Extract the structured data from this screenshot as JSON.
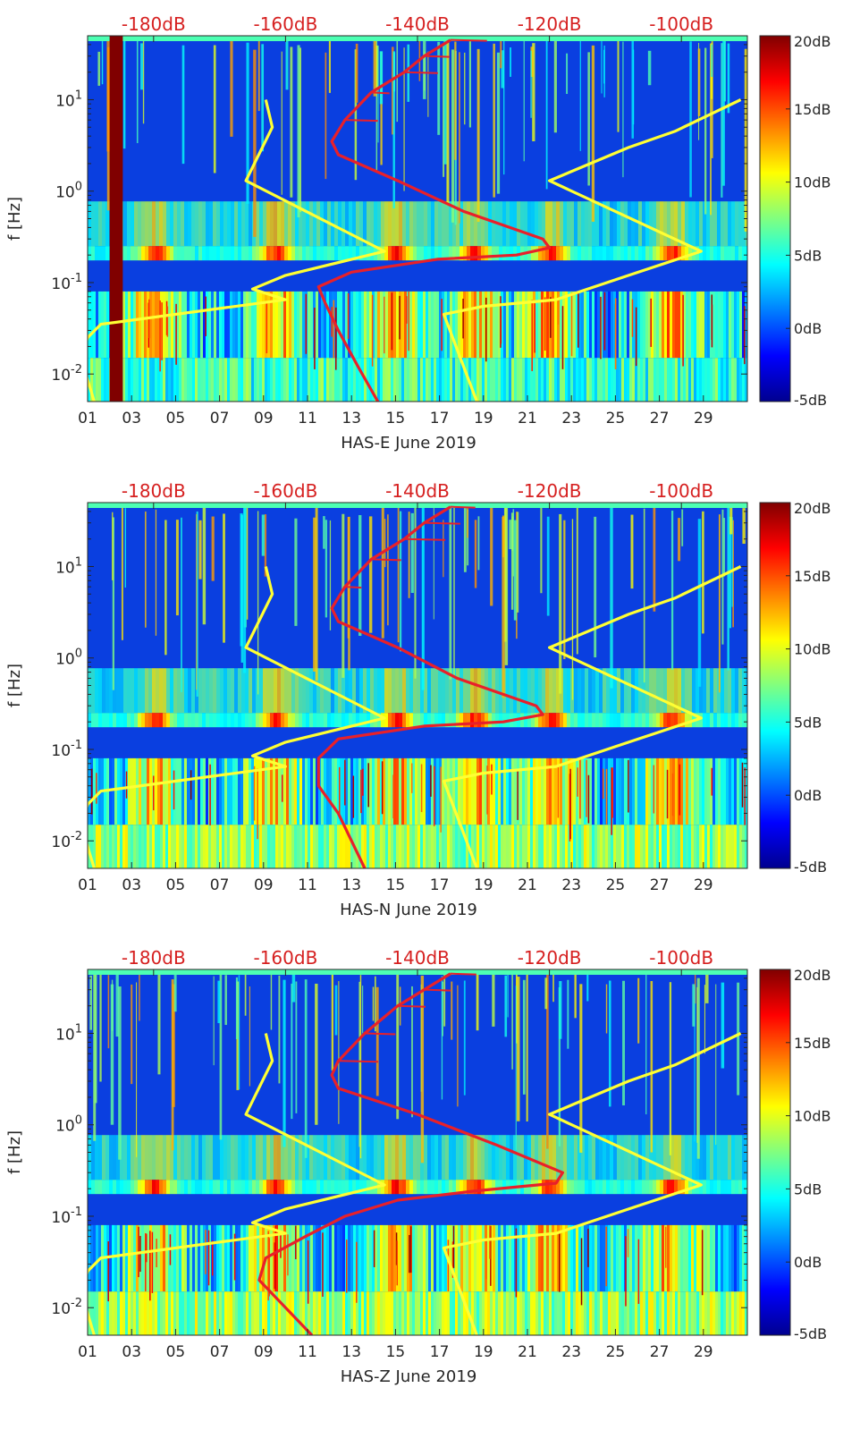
{
  "figure": {
    "colorbar_ticks": [
      "20dB",
      "15dB",
      "10dB",
      "5dB",
      "0dB",
      "-5dB"
    ],
    "colorbar_values": [
      20,
      15,
      10,
      5,
      0,
      -5
    ],
    "colormap": [
      "#00008f",
      "#0000ff",
      "#0080ff",
      "#00ffff",
      "#80ff80",
      "#ffff00",
      "#ff8000",
      "#ff0000",
      "#800000"
    ],
    "x_ticks": [
      "01",
      "03",
      "05",
      "07",
      "09",
      "11",
      "13",
      "15",
      "17",
      "19",
      "21",
      "23",
      "25",
      "27",
      "29"
    ],
    "top_ticks": [
      "-180dB",
      "-160dB",
      "-140dB",
      "-120dB",
      "-100dB"
    ],
    "colors": {
      "noise_model": "#ffff33",
      "psd": "#e8202a",
      "top_axis_text": "#d62020",
      "background": "#0a3fe0"
    }
  },
  "chart_data": [
    {
      "type": "heatmap",
      "xlabel": "HAS-E June 2019",
      "ylabel": "f [Hz]",
      "y_scale": "log",
      "ylim": [
        0.005,
        50
      ],
      "xlim": [
        1,
        31
      ],
      "y_ticks": [
        {
          "base": "10",
          "exp": "1"
        },
        {
          "base": "10",
          "exp": "0"
        },
        {
          "base": "10",
          "exp": "-1"
        },
        {
          "base": "10",
          "exp": "-2"
        }
      ],
      "top_axis_lim_dB": [
        -190,
        -90
      ],
      "colorbar_lim_dB": [
        -5,
        20
      ],
      "data_gap_days": [
        2.0,
        2.6
      ],
      "microseism_peak_hz": 0.2,
      "high_noise_days": [
        4,
        9.5,
        15,
        18.5,
        22,
        27.5
      ],
      "noise_model_low": [
        {
          "f": 10,
          "dB": -163
        },
        {
          "f": 5,
          "dB": -162
        },
        {
          "f": 1.3,
          "dB": -166
        },
        {
          "f": 0.22,
          "dB": -145
        },
        {
          "f": 0.12,
          "dB": -160
        },
        {
          "f": 0.085,
          "dB": -165
        },
        {
          "f": 0.065,
          "dB": -160
        },
        {
          "f": 0.035,
          "dB": -188
        },
        {
          "f": 0.025,
          "dB": -190
        },
        {
          "f": 0.015,
          "dB": -191
        },
        {
          "f": 0.005,
          "dB": -189
        }
      ],
      "noise_model_high": [
        {
          "f": 10,
          "dB": -91
        },
        {
          "f": 4.5,
          "dB": -101
        },
        {
          "f": 3,
          "dB": -108
        },
        {
          "f": 1.3,
          "dB": -120
        },
        {
          "f": 0.22,
          "dB": -97
        },
        {
          "f": 0.12,
          "dB": -108
        },
        {
          "f": 0.065,
          "dB": -119
        },
        {
          "f": 0.055,
          "dB": -130
        },
        {
          "f": 0.045,
          "dB": -136
        },
        {
          "f": 0.005,
          "dB": -131
        }
      ],
      "psd": [
        {
          "f": 45,
          "dB": -135
        },
        {
          "f": 30,
          "dB": -139
        },
        {
          "f": 20,
          "dB": -142
        },
        {
          "f": 12,
          "dB": -147
        },
        {
          "f": 6,
          "dB": -151
        },
        {
          "f": 3.5,
          "dB": -153
        },
        {
          "f": 2.5,
          "dB": -152
        },
        {
          "f": 1.3,
          "dB": -143
        },
        {
          "f": 0.6,
          "dB": -133
        },
        {
          "f": 0.3,
          "dB": -121
        },
        {
          "f": 0.24,
          "dB": -120
        },
        {
          "f": 0.2,
          "dB": -125
        },
        {
          "f": 0.18,
          "dB": -137
        },
        {
          "f": 0.13,
          "dB": -150
        },
        {
          "f": 0.09,
          "dB": -155
        },
        {
          "f": 0.06,
          "dB": -154
        },
        {
          "f": 0.03,
          "dB": -152
        },
        {
          "f": 0.012,
          "dB": -149
        },
        {
          "f": 0.005,
          "dB": -146
        }
      ]
    },
    {
      "type": "heatmap",
      "xlabel": "HAS-N June 2019",
      "ylabel": "f [Hz]",
      "y_scale": "log",
      "ylim": [
        0.005,
        50
      ],
      "xlim": [
        1,
        31
      ],
      "y_ticks": [
        {
          "base": "10",
          "exp": "1"
        },
        {
          "base": "10",
          "exp": "0"
        },
        {
          "base": "10",
          "exp": "-1"
        },
        {
          "base": "10",
          "exp": "-2"
        }
      ],
      "top_axis_lim_dB": [
        -190,
        -90
      ],
      "colorbar_lim_dB": [
        -5,
        20
      ],
      "data_gap_days": [],
      "microseism_peak_hz": 0.2,
      "high_noise_days": [
        4,
        9.5,
        15,
        18.5,
        22,
        27.5
      ],
      "noise_model_low": [
        {
          "f": 10,
          "dB": -163
        },
        {
          "f": 5,
          "dB": -162
        },
        {
          "f": 1.3,
          "dB": -166
        },
        {
          "f": 0.22,
          "dB": -145
        },
        {
          "f": 0.12,
          "dB": -160
        },
        {
          "f": 0.085,
          "dB": -165
        },
        {
          "f": 0.065,
          "dB": -160
        },
        {
          "f": 0.035,
          "dB": -188
        },
        {
          "f": 0.025,
          "dB": -190
        },
        {
          "f": 0.015,
          "dB": -191
        },
        {
          "f": 0.005,
          "dB": -189
        }
      ],
      "noise_model_high": [
        {
          "f": 10,
          "dB": -91
        },
        {
          "f": 4.5,
          "dB": -101
        },
        {
          "f": 3,
          "dB": -108
        },
        {
          "f": 1.3,
          "dB": -120
        },
        {
          "f": 0.22,
          "dB": -97
        },
        {
          "f": 0.12,
          "dB": -108
        },
        {
          "f": 0.065,
          "dB": -119
        },
        {
          "f": 0.055,
          "dB": -130
        },
        {
          "f": 0.045,
          "dB": -136
        },
        {
          "f": 0.005,
          "dB": -131
        }
      ],
      "psd": [
        {
          "f": 45,
          "dB": -135
        },
        {
          "f": 30,
          "dB": -139
        },
        {
          "f": 20,
          "dB": -142
        },
        {
          "f": 12,
          "dB": -147
        },
        {
          "f": 6,
          "dB": -151
        },
        {
          "f": 3.5,
          "dB": -153
        },
        {
          "f": 2.5,
          "dB": -152
        },
        {
          "f": 1.3,
          "dB": -143
        },
        {
          "f": 0.6,
          "dB": -134
        },
        {
          "f": 0.3,
          "dB": -122
        },
        {
          "f": 0.24,
          "dB": -121
        },
        {
          "f": 0.2,
          "dB": -127
        },
        {
          "f": 0.18,
          "dB": -139
        },
        {
          "f": 0.13,
          "dB": -152
        },
        {
          "f": 0.08,
          "dB": -155
        },
        {
          "f": 0.04,
          "dB": -155
        },
        {
          "f": 0.02,
          "dB": -152
        },
        {
          "f": 0.01,
          "dB": -150
        },
        {
          "f": 0.005,
          "dB": -148
        }
      ]
    },
    {
      "type": "heatmap",
      "xlabel": "HAS-Z June 2019",
      "ylabel": "f [Hz]",
      "y_scale": "log",
      "ylim": [
        0.005,
        50
      ],
      "xlim": [
        1,
        31
      ],
      "y_ticks": [
        {
          "base": "10",
          "exp": "1"
        },
        {
          "base": "10",
          "exp": "0"
        },
        {
          "base": "10",
          "exp": "-1"
        },
        {
          "base": "10",
          "exp": "-2"
        }
      ],
      "top_axis_lim_dB": [
        -190,
        -90
      ],
      "colorbar_lim_dB": [
        -5,
        20
      ],
      "data_gap_days": [],
      "microseism_peak_hz": 0.2,
      "high_noise_days": [
        4,
        9.5,
        15,
        18.5,
        22,
        27.5
      ],
      "noise_model_low": [
        {
          "f": 10,
          "dB": -163
        },
        {
          "f": 5,
          "dB": -162
        },
        {
          "f": 1.3,
          "dB": -166
        },
        {
          "f": 0.22,
          "dB": -145
        },
        {
          "f": 0.12,
          "dB": -160
        },
        {
          "f": 0.085,
          "dB": -165
        },
        {
          "f": 0.065,
          "dB": -160
        },
        {
          "f": 0.035,
          "dB": -188
        },
        {
          "f": 0.025,
          "dB": -190
        },
        {
          "f": 0.015,
          "dB": -191
        },
        {
          "f": 0.005,
          "dB": -189
        }
      ],
      "noise_model_high": [
        {
          "f": 10,
          "dB": -91
        },
        {
          "f": 4.5,
          "dB": -101
        },
        {
          "f": 3,
          "dB": -108
        },
        {
          "f": 1.3,
          "dB": -120
        },
        {
          "f": 0.22,
          "dB": -97
        },
        {
          "f": 0.12,
          "dB": -108
        },
        {
          "f": 0.065,
          "dB": -119
        },
        {
          "f": 0.055,
          "dB": -130
        },
        {
          "f": 0.045,
          "dB": -136
        },
        {
          "f": 0.005,
          "dB": -131
        }
      ],
      "psd": [
        {
          "f": 45,
          "dB": -135
        },
        {
          "f": 30,
          "dB": -139
        },
        {
          "f": 20,
          "dB": -143
        },
        {
          "f": 10,
          "dB": -148
        },
        {
          "f": 5,
          "dB": -152
        },
        {
          "f": 3.5,
          "dB": -153
        },
        {
          "f": 2.5,
          "dB": -152
        },
        {
          "f": 1.3,
          "dB": -140
        },
        {
          "f": 0.6,
          "dB": -128
        },
        {
          "f": 0.3,
          "dB": -118
        },
        {
          "f": 0.23,
          "dB": -119
        },
        {
          "f": 0.19,
          "dB": -131
        },
        {
          "f": 0.15,
          "dB": -143
        },
        {
          "f": 0.1,
          "dB": -151
        },
        {
          "f": 0.06,
          "dB": -157
        },
        {
          "f": 0.035,
          "dB": -163
        },
        {
          "f": 0.02,
          "dB": -164
        },
        {
          "f": 0.01,
          "dB": -160
        },
        {
          "f": 0.005,
          "dB": -156
        }
      ]
    }
  ]
}
